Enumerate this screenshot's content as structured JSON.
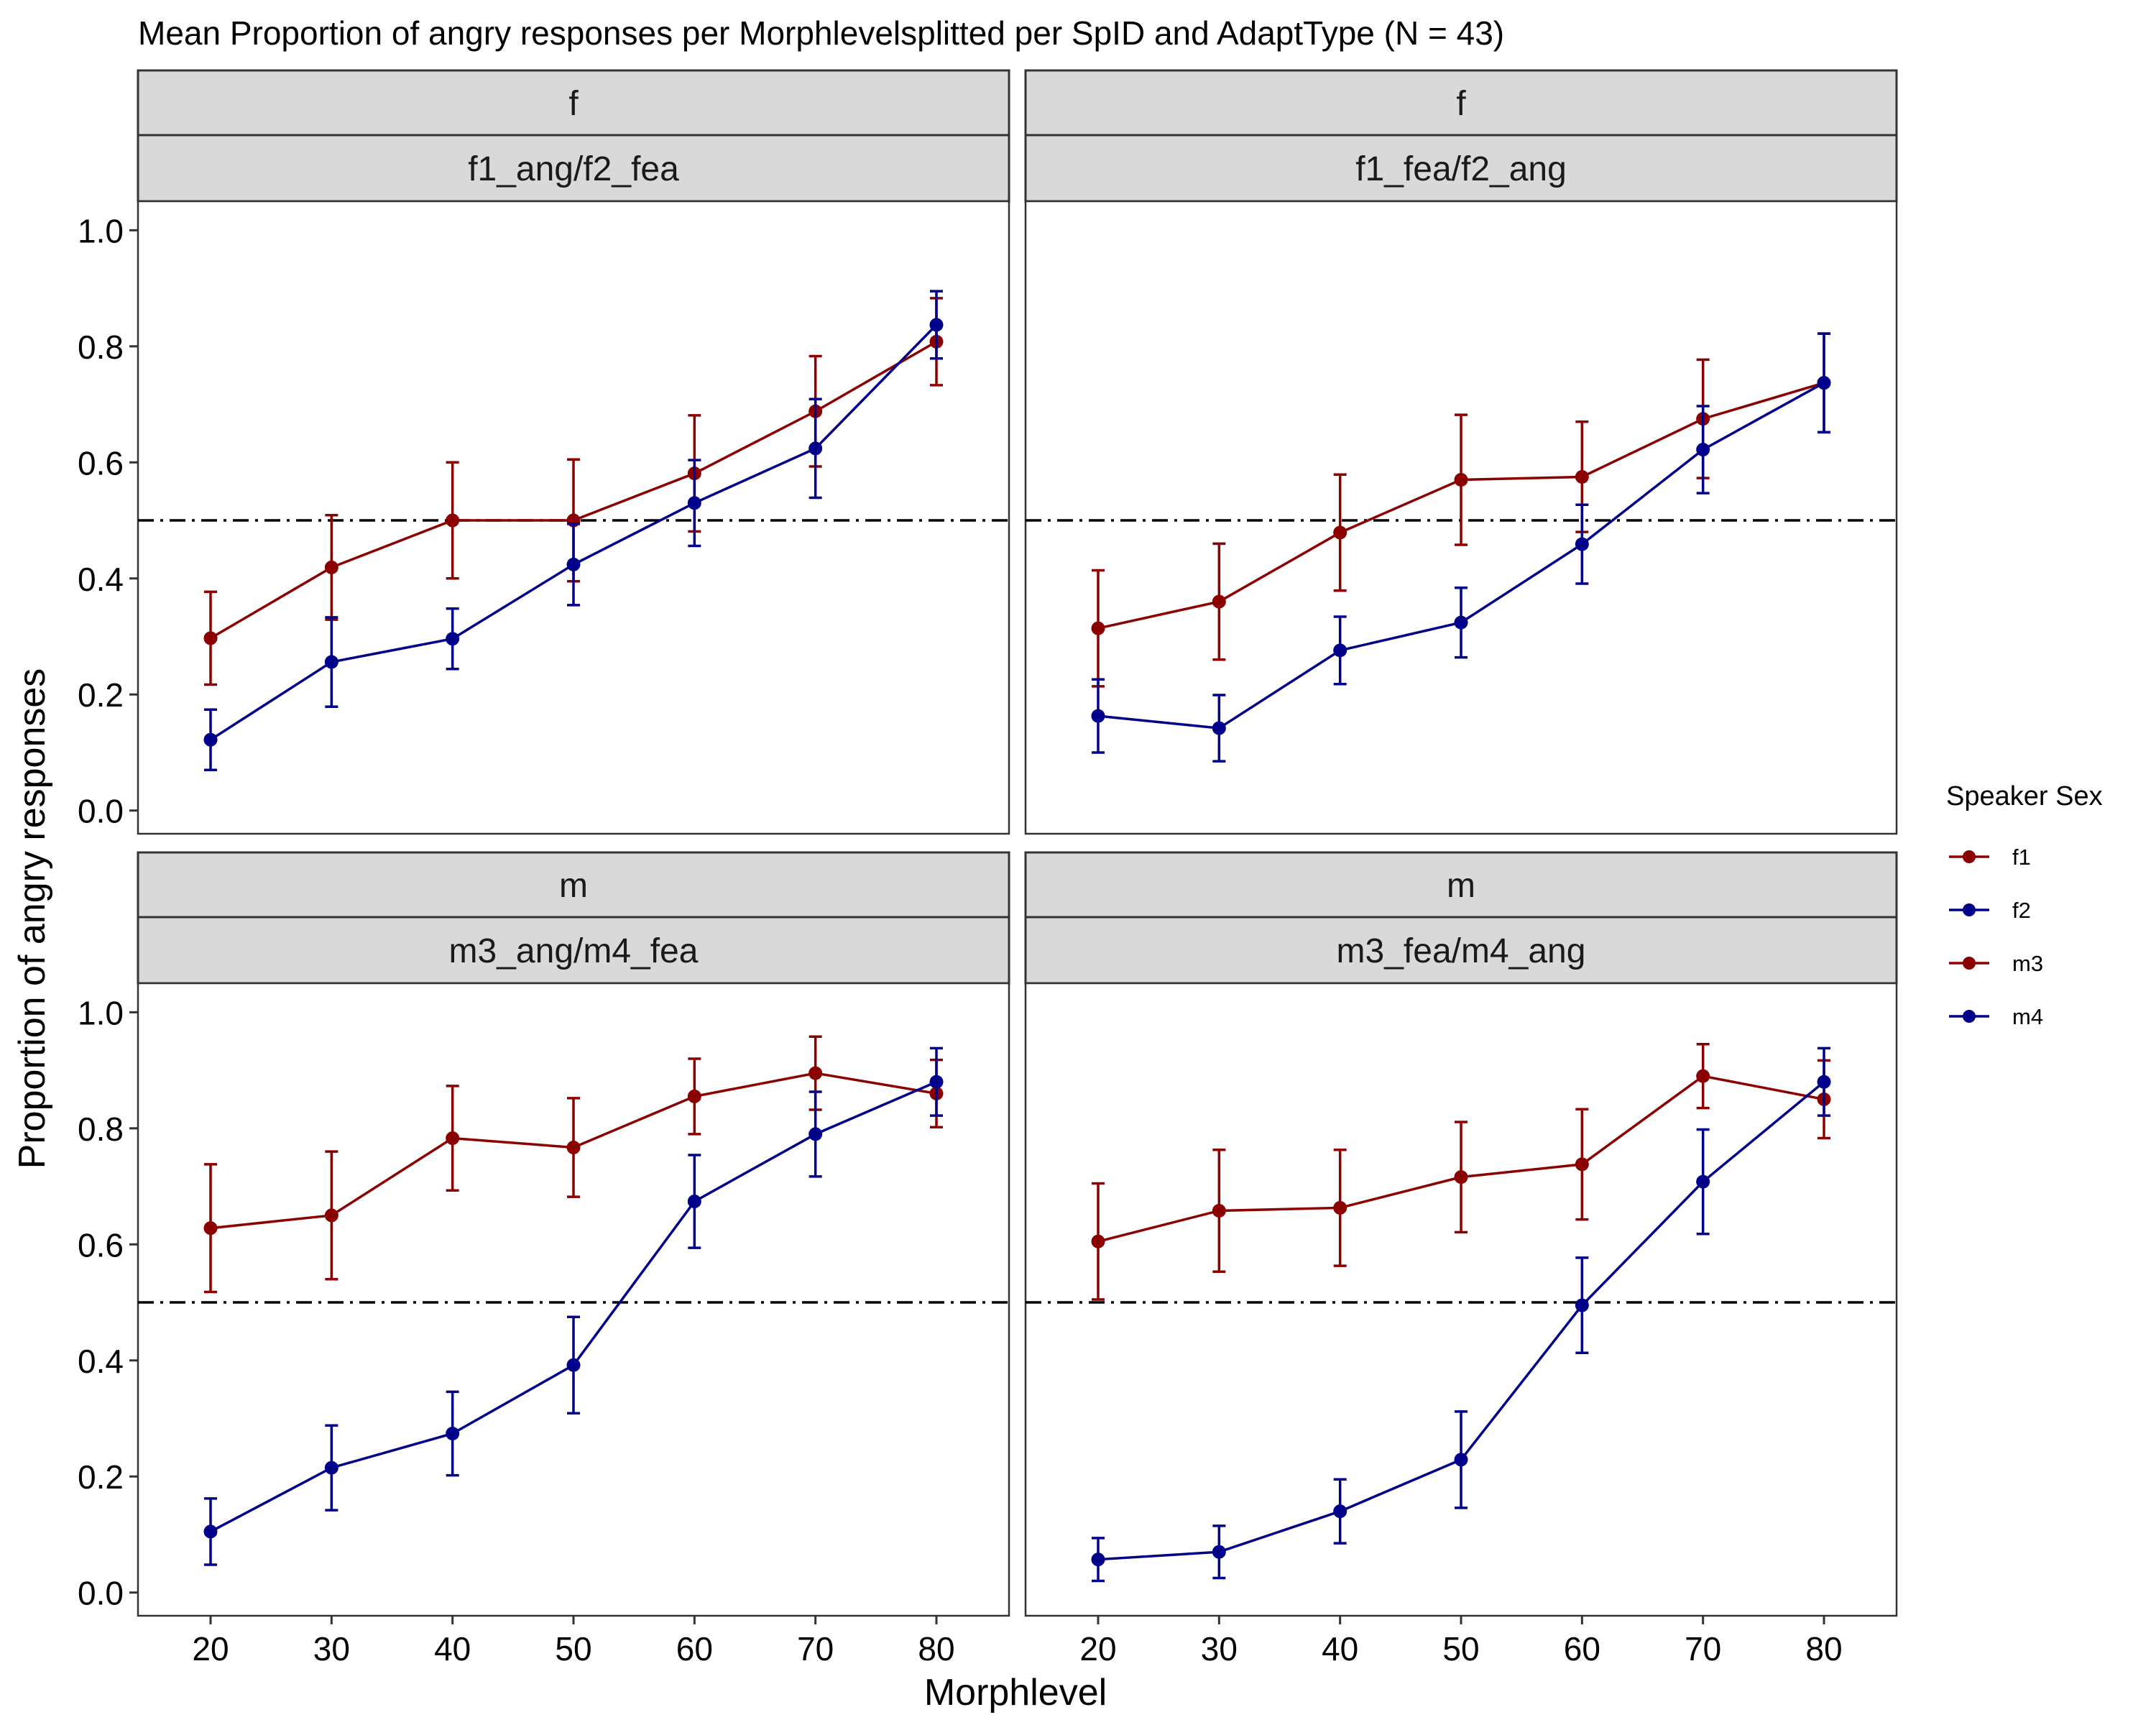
{
  "chart_data": {
    "type": "line",
    "title": "Mean Proportion of angry responses per Morphlevelsplitted per SpID and AdaptType (N = 43)",
    "xlabel": "Morphlevel",
    "ylabel": "Proportion of angry responses",
    "x": [
      20,
      30,
      40,
      50,
      60,
      70,
      80
    ],
    "ylim": [
      -0.04,
      1.05
    ],
    "yticks": [
      0.0,
      0.2,
      0.4,
      0.6,
      0.8,
      1.0
    ],
    "ytick_labels": [
      "0.0",
      "0.2",
      "0.4",
      "0.6",
      "0.8",
      "1.0"
    ],
    "xticks": [
      20,
      30,
      40,
      50,
      60,
      70,
      80
    ],
    "xtick_labels": [
      "20",
      "30",
      "40",
      "50",
      "60",
      "70",
      "80"
    ],
    "reference_line": 0.5,
    "grid": false,
    "legend": {
      "title": "Speaker Sex",
      "placement": "right",
      "entries": [
        {
          "label": "f1",
          "color": "#8B0000"
        },
        {
          "label": "f2",
          "color": "#00008B"
        },
        {
          "label": "m3",
          "color": "#8B0000"
        },
        {
          "label": "m4",
          "color": "#00008B"
        }
      ]
    },
    "panels": [
      {
        "strip_top": "f",
        "strip_bottom": "f1_ang/f2_fea",
        "series": [
          {
            "name": "f1",
            "color": "#8B0000",
            "values": [
              0.297,
              0.419,
              0.5,
              0.5,
              0.581,
              0.688,
              0.808
            ],
            "errors": [
              0.08,
              0.09,
              0.1,
              0.105,
              0.1,
              0.095,
              0.075
            ]
          },
          {
            "name": "f2",
            "color": "#00008B",
            "values": [
              0.122,
              0.256,
              0.296,
              0.424,
              0.53,
              0.624,
              0.837
            ],
            "errors": [
              0.052,
              0.077,
              0.052,
              0.07,
              0.074,
              0.085,
              0.058
            ]
          }
        ]
      },
      {
        "strip_top": "f",
        "strip_bottom": "f1_fea/f2_ang",
        "series": [
          {
            "name": "f1",
            "color": "#8B0000",
            "values": [
              0.314,
              0.36,
              0.479,
              0.57,
              0.575,
              0.675,
              0.737
            ],
            "errors": [
              0.1,
              0.1,
              0.1,
              0.112,
              0.095,
              0.102,
              0.085
            ]
          },
          {
            "name": "f2",
            "color": "#00008B",
            "values": [
              0.163,
              0.142,
              0.276,
              0.324,
              0.459,
              0.622,
              0.737
            ],
            "errors": [
              0.063,
              0.057,
              0.058,
              0.06,
              0.068,
              0.075,
              0.085
            ]
          }
        ]
      },
      {
        "strip_top": "m",
        "strip_bottom": "m3_ang/m4_fea",
        "series": [
          {
            "name": "m3",
            "color": "#8B0000",
            "values": [
              0.628,
              0.65,
              0.783,
              0.767,
              0.855,
              0.895,
              0.86
            ],
            "errors": [
              0.11,
              0.11,
              0.09,
              0.085,
              0.065,
              0.063,
              0.058
            ]
          },
          {
            "name": "m4",
            "color": "#00008B",
            "values": [
              0.105,
              0.215,
              0.274,
              0.392,
              0.674,
              0.79,
              0.88
            ],
            "errors": [
              0.057,
              0.073,
              0.072,
              0.083,
              0.08,
              0.073,
              0.058
            ]
          }
        ]
      },
      {
        "strip_top": "m",
        "strip_bottom": "m3_fea/m4_ang",
        "series": [
          {
            "name": "m3",
            "color": "#8B0000",
            "values": [
              0.605,
              0.658,
              0.663,
              0.716,
              0.738,
              0.89,
              0.85
            ],
            "errors": [
              0.1,
              0.105,
              0.1,
              0.095,
              0.095,
              0.055,
              0.067
            ]
          },
          {
            "name": "m4",
            "color": "#00008B",
            "values": [
              0.057,
              0.07,
              0.14,
              0.229,
              0.495,
              0.708,
              0.88
            ],
            "errors": [
              0.037,
              0.045,
              0.055,
              0.083,
              0.082,
              0.09,
              0.058
            ]
          }
        ]
      }
    ]
  }
}
